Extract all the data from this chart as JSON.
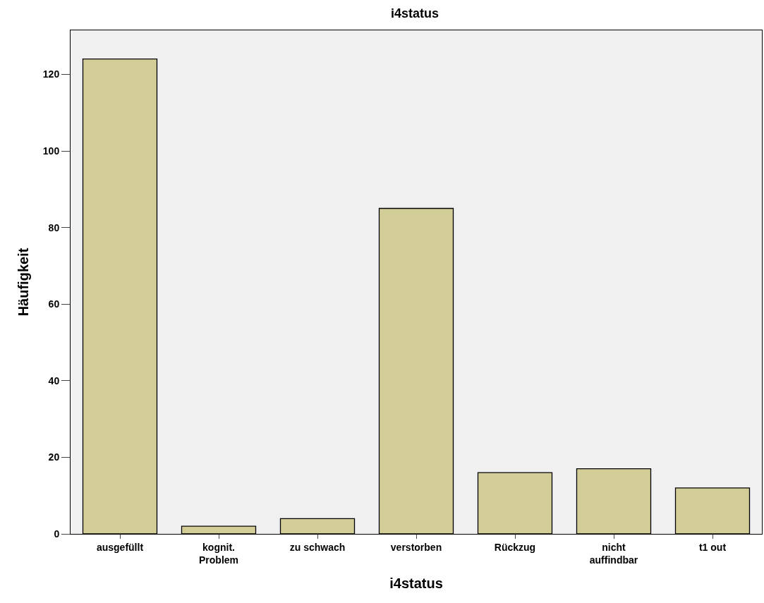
{
  "chart_data": {
    "type": "bar",
    "title": "i4status",
    "xlabel": "i4status",
    "ylabel": "Häufigkeit",
    "categories": [
      "ausgefüllt",
      "kognit. Problem",
      "zu schwach",
      "verstorben",
      "Rückzug",
      "nicht auffindbar",
      "t1 out"
    ],
    "values": [
      124,
      2,
      4,
      85,
      16,
      17,
      12
    ],
    "color": "#d3ce98",
    "ylim": [
      0,
      131.5
    ],
    "yticks": [
      0,
      20,
      40,
      60,
      80,
      100,
      120
    ],
    "grid": false,
    "legend": false
  }
}
